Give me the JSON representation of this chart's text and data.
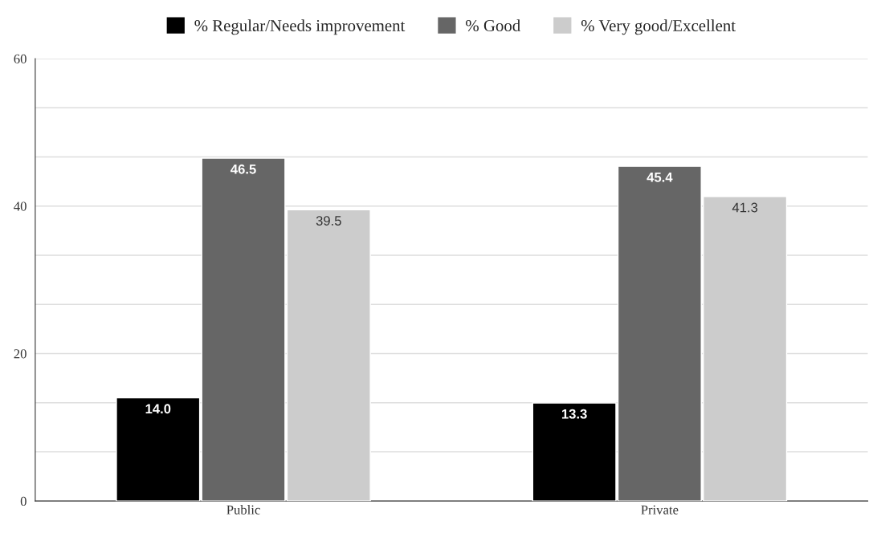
{
  "chart_data": {
    "type": "bar",
    "categories": [
      "Public",
      "Private"
    ],
    "series": [
      {
        "name": "% Regular/Needs improvement",
        "color": "#000000",
        "values": [
          14.0,
          13.3
        ],
        "value_labels": [
          "14.0",
          "13.3"
        ]
      },
      {
        "name": "% Good",
        "color": "#666666",
        "values": [
          46.5,
          45.4
        ],
        "value_labels": [
          "46.5",
          "45.4"
        ]
      },
      {
        "name": "% Very good/Excellent",
        "color": "#cccccc",
        "values": [
          39.5,
          41.3
        ],
        "value_labels": [
          "39.5",
          "41.3"
        ]
      }
    ],
    "ylim": [
      0,
      60
    ],
    "yticks": [
      0,
      {
        "value": 6.667,
        "label": null
      },
      {
        "value": 13.333,
        "label": null
      },
      20,
      {
        "value": 26.667,
        "label": null
      },
      {
        "value": 33.333,
        "label": null
      },
      40,
      {
        "value": 46.667,
        "label": null
      },
      {
        "value": 53.333,
        "label": null
      },
      60
    ],
    "grid": "y",
    "legend": "top"
  }
}
